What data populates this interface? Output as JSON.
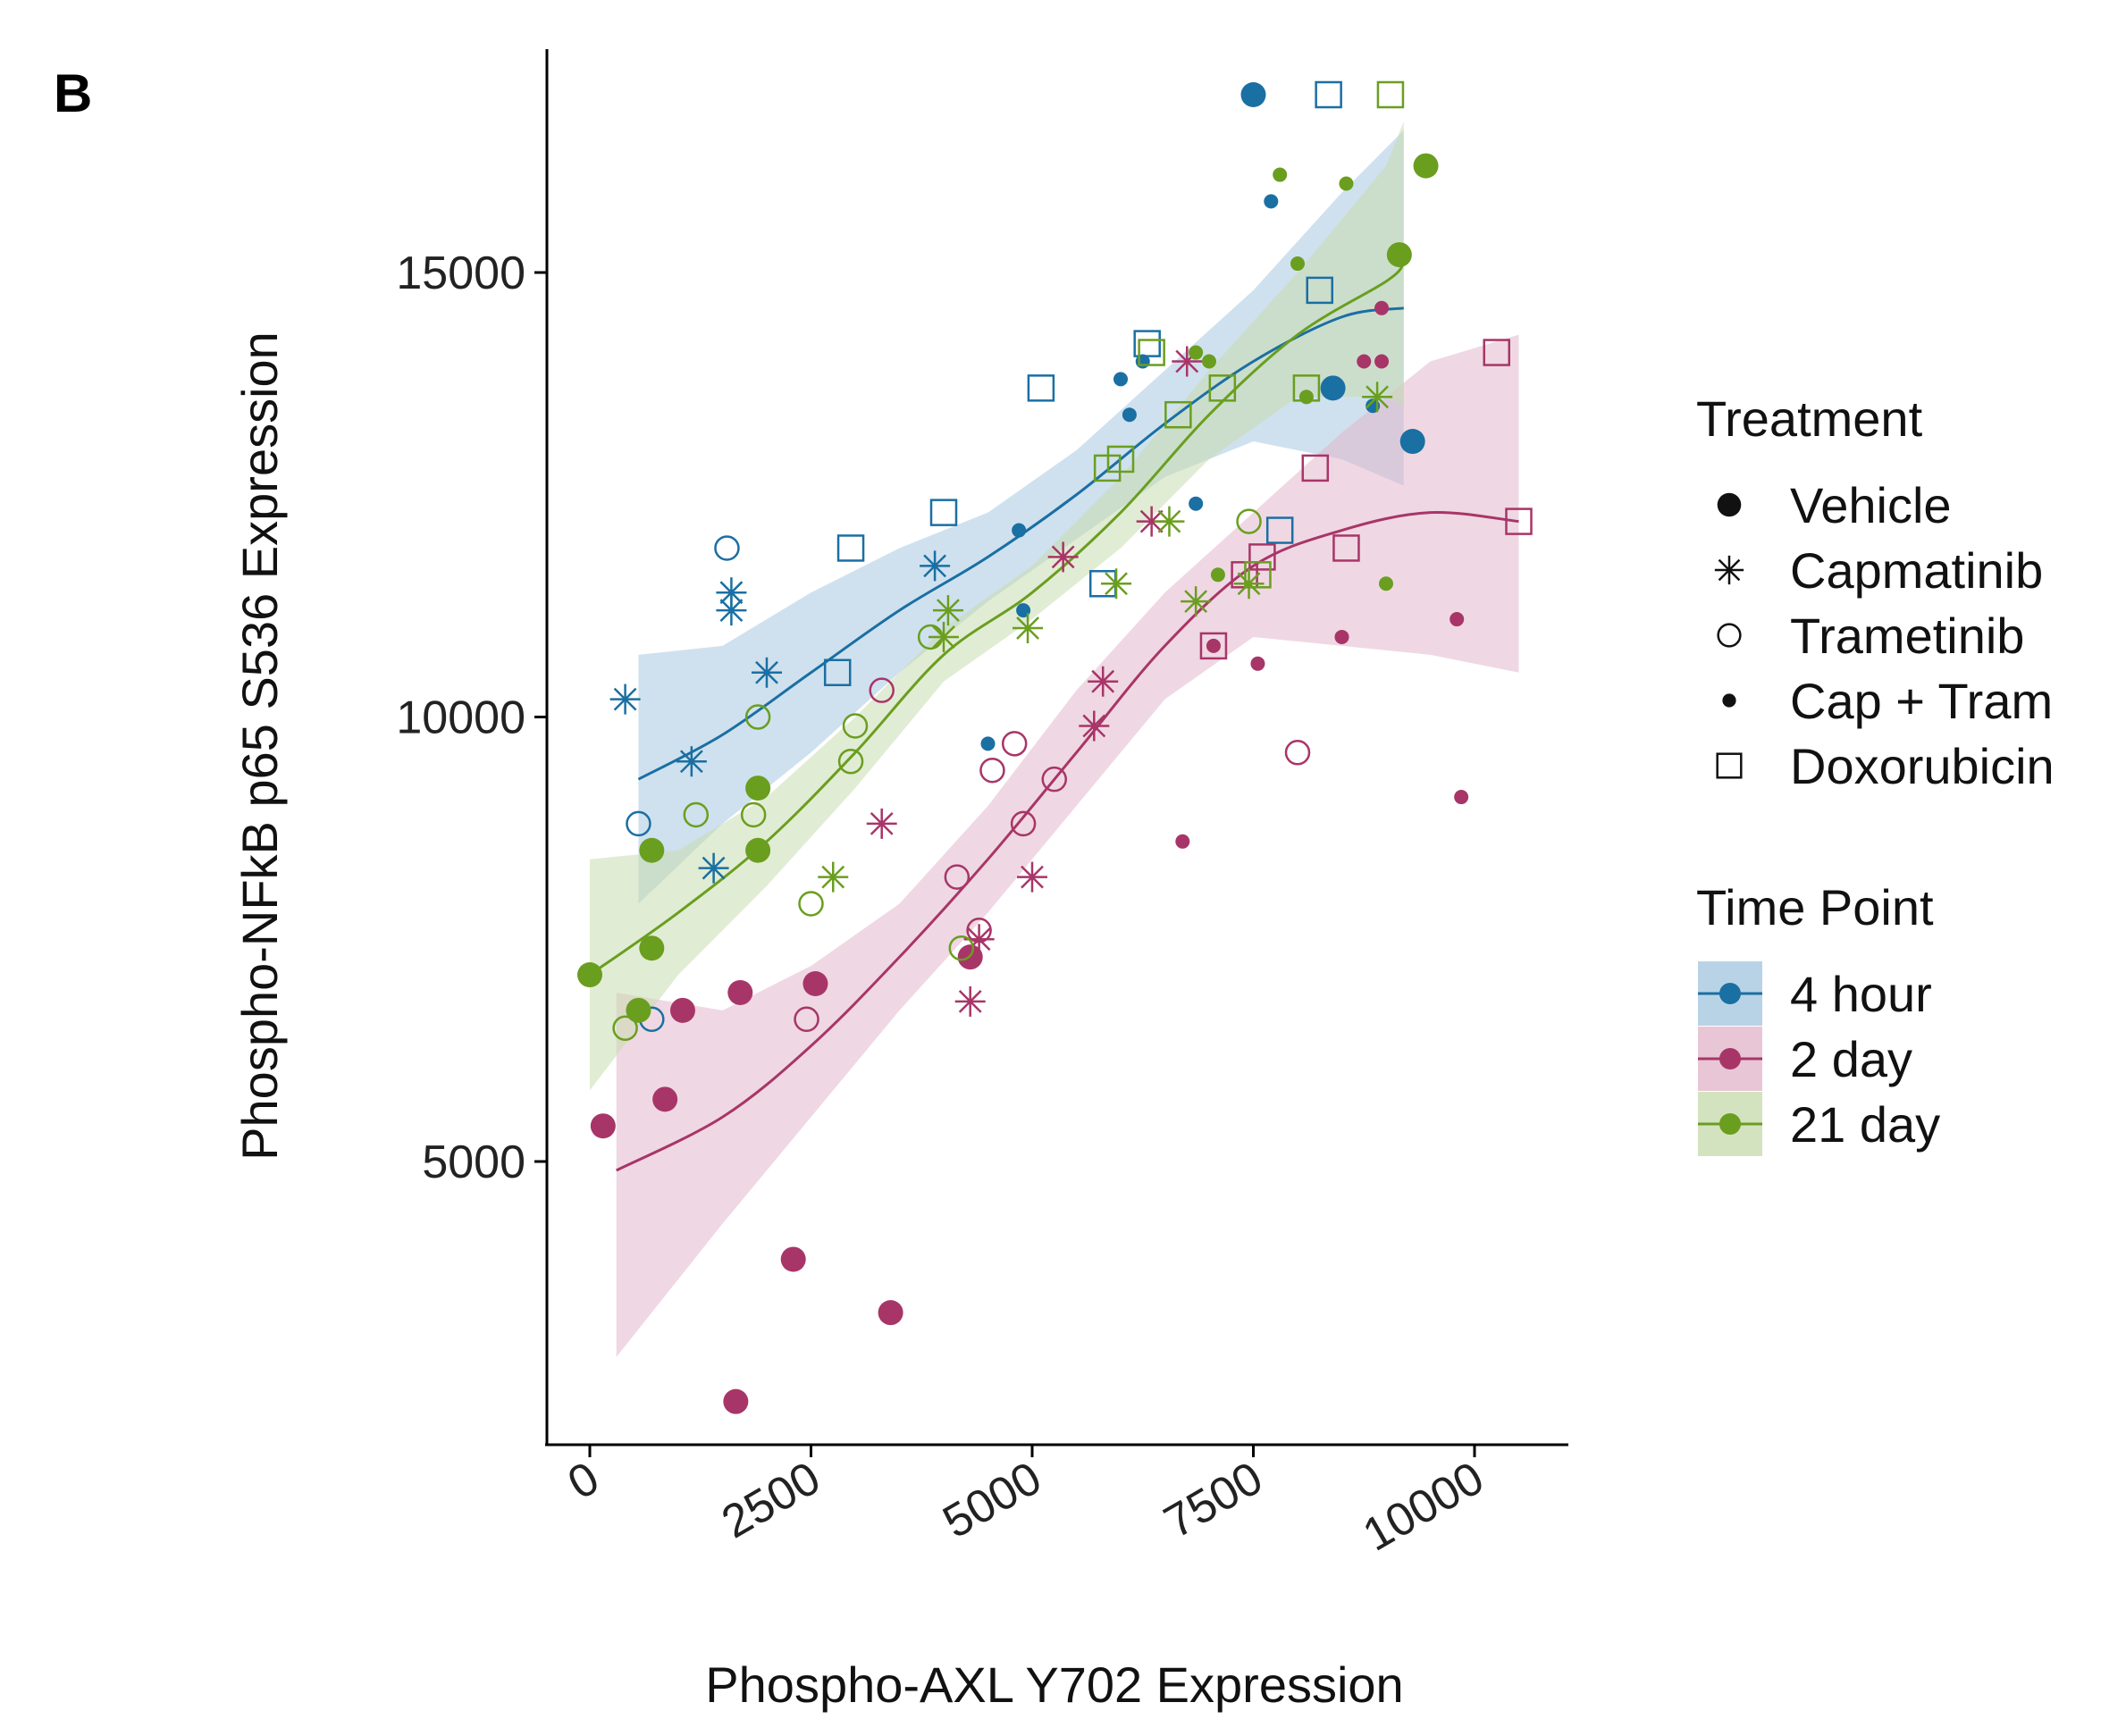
{
  "panel_label": "B",
  "chart_data": {
    "type": "scatter",
    "title": "",
    "xlabel": "Phospho-AXL Y702 Expression",
    "ylabel": "Phospho-NFkB p65 S536 Expression",
    "xlim": [
      -1000,
      11000
    ],
    "ylim": [
      2000,
      17500
    ],
    "xticks": [
      0,
      2500,
      5000,
      7500,
      10000
    ],
    "xtick_labels": [
      "0",
      "2500",
      "5000",
      "7500",
      "10000"
    ],
    "yticks": [
      5000,
      10000,
      15000
    ],
    "ytick_labels": [
      "5000",
      "10000",
      "15000"
    ],
    "legend_placement": "right",
    "legend": {
      "treatment_title": "Treatment",
      "treatments": [
        {
          "key": "vehicle",
          "label": "Vehicle",
          "shape": "filled-circle"
        },
        {
          "key": "capmatinib",
          "label": "Capmatinib",
          "shape": "asterisk"
        },
        {
          "key": "trametinib",
          "label": "Trametinib",
          "shape": "open-circle"
        },
        {
          "key": "cap_tram",
          "label": "Cap + Tram",
          "shape": "small-dot"
        },
        {
          "key": "doxorubicin",
          "label": "Doxorubicin",
          "shape": "open-square"
        }
      ],
      "time_title": "Time Point",
      "time_points": [
        {
          "key": "4h",
          "label": "4 hour",
          "color": "#1a6fa3",
          "band_color": "#a8c8e0"
        },
        {
          "key": "2d",
          "label": "2 day",
          "color": "#a83568",
          "band_color": "#e2b8cc"
        },
        {
          "key": "21d",
          "label": "21 day",
          "color": "#6a9e1f",
          "band_color": "#c8dcb0"
        }
      ]
    },
    "series": [
      {
        "name": "4 hour",
        "key": "4h",
        "smooth": {
          "x": [
            550,
            1500,
            2500,
            3500,
            4500,
            5500,
            6500,
            7500,
            8500,
            9200
          ],
          "y": [
            9300,
            9800,
            10500,
            11200,
            11800,
            12500,
            13300,
            14000,
            14500,
            14600
          ],
          "lower": [
            7900,
            8800,
            9600,
            10500,
            11300,
            12000,
            12700,
            13100,
            12900,
            12600
          ],
          "upper": [
            10700,
            10800,
            11400,
            11900,
            12300,
            13000,
            13900,
            14800,
            15900,
            16600
          ]
        },
        "points": [
          {
            "t": "vehicle",
            "x": 7500,
            "y": 17000
          },
          {
            "t": "vehicle",
            "x": 8400,
            "y": 13700
          },
          {
            "t": "vehicle",
            "x": 9300,
            "y": 13100
          },
          {
            "t": "capmatinib",
            "x": 400,
            "y": 10200
          },
          {
            "t": "capmatinib",
            "x": 1150,
            "y": 9500
          },
          {
            "t": "capmatinib",
            "x": 1400,
            "y": 8300
          },
          {
            "t": "capmatinib",
            "x": 1600,
            "y": 11400
          },
          {
            "t": "capmatinib",
            "x": 1600,
            "y": 11200
          },
          {
            "t": "capmatinib",
            "x": 2000,
            "y": 10500
          },
          {
            "t": "capmatinib",
            "x": 3900,
            "y": 11700
          },
          {
            "t": "trametinib",
            "x": 550,
            "y": 8800
          },
          {
            "t": "trametinib",
            "x": 700,
            "y": 6600
          },
          {
            "t": "trametinib",
            "x": 1550,
            "y": 11900
          },
          {
            "t": "cap_tram",
            "x": 4500,
            "y": 9700
          },
          {
            "t": "cap_tram",
            "x": 4900,
            "y": 11200
          },
          {
            "t": "cap_tram",
            "x": 4850,
            "y": 12100
          },
          {
            "t": "cap_tram",
            "x": 6000,
            "y": 13800
          },
          {
            "t": "cap_tram",
            "x": 6100,
            "y": 13400
          },
          {
            "t": "cap_tram",
            "x": 6250,
            "y": 14000
          },
          {
            "t": "cap_tram",
            "x": 6850,
            "y": 12400
          },
          {
            "t": "cap_tram",
            "x": 7700,
            "y": 15800
          },
          {
            "t": "cap_tram",
            "x": 8850,
            "y": 13500
          },
          {
            "t": "doxorubicin",
            "x": 2800,
            "y": 10500
          },
          {
            "t": "doxorubicin",
            "x": 2950,
            "y": 11900
          },
          {
            "t": "doxorubicin",
            "x": 4000,
            "y": 12300
          },
          {
            "t": "doxorubicin",
            "x": 5100,
            "y": 13700
          },
          {
            "t": "doxorubicin",
            "x": 5800,
            "y": 11500
          },
          {
            "t": "doxorubicin",
            "x": 6300,
            "y": 14200
          },
          {
            "t": "doxorubicin",
            "x": 7800,
            "y": 12100
          },
          {
            "t": "doxorubicin",
            "x": 8250,
            "y": 14800
          },
          {
            "t": "doxorubicin",
            "x": 8350,
            "y": 17000
          }
        ]
      },
      {
        "name": "2 day",
        "key": "2d",
        "smooth": {
          "x": [
            300,
            1500,
            2500,
            3500,
            4500,
            5500,
            6500,
            7500,
            8500,
            9500,
            10500
          ],
          "y": [
            4900,
            5500,
            6300,
            7300,
            8400,
            9600,
            10800,
            11700,
            12100,
            12300,
            12200
          ],
          "lower": [
            2800,
            4300,
            5500,
            6700,
            7800,
            9000,
            10200,
            10900,
            10800,
            10700,
            10500
          ],
          "upper": [
            6900,
            6700,
            7200,
            7900,
            9000,
            10300,
            11400,
            12300,
            13200,
            14000,
            14300
          ]
        },
        "points": [
          {
            "t": "vehicle",
            "x": 150,
            "y": 5400
          },
          {
            "t": "vehicle",
            "x": 850,
            "y": 5700
          },
          {
            "t": "vehicle",
            "x": 1050,
            "y": 6700
          },
          {
            "t": "vehicle",
            "x": 1700,
            "y": 6900
          },
          {
            "t": "vehicle",
            "x": 1650,
            "y": 2300
          },
          {
            "t": "vehicle",
            "x": 2300,
            "y": 3900
          },
          {
            "t": "vehicle",
            "x": 2550,
            "y": 7000
          },
          {
            "t": "vehicle",
            "x": 3400,
            "y": 3300
          },
          {
            "t": "vehicle",
            "x": 4300,
            "y": 7300
          },
          {
            "t": "capmatinib",
            "x": 3300,
            "y": 8800
          },
          {
            "t": "capmatinib",
            "x": 4300,
            "y": 6800
          },
          {
            "t": "capmatinib",
            "x": 4400,
            "y": 7500
          },
          {
            "t": "capmatinib",
            "x": 5000,
            "y": 8200
          },
          {
            "t": "capmatinib",
            "x": 5350,
            "y": 11800
          },
          {
            "t": "capmatinib",
            "x": 5700,
            "y": 9900
          },
          {
            "t": "capmatinib",
            "x": 5800,
            "y": 10400
          },
          {
            "t": "capmatinib",
            "x": 6350,
            "y": 12200
          },
          {
            "t": "capmatinib",
            "x": 6750,
            "y": 14000
          },
          {
            "t": "trametinib",
            "x": 2450,
            "y": 6600
          },
          {
            "t": "trametinib",
            "x": 3300,
            "y": 10300
          },
          {
            "t": "trametinib",
            "x": 4150,
            "y": 8200
          },
          {
            "t": "trametinib",
            "x": 4400,
            "y": 7600
          },
          {
            "t": "trametinib",
            "x": 4550,
            "y": 9400
          },
          {
            "t": "trametinib",
            "x": 4800,
            "y": 9700
          },
          {
            "t": "trametinib",
            "x": 4900,
            "y": 8800
          },
          {
            "t": "trametinib",
            "x": 5250,
            "y": 9300
          },
          {
            "t": "trametinib",
            "x": 8000,
            "y": 9600
          },
          {
            "t": "cap_tram",
            "x": 6700,
            "y": 8600
          },
          {
            "t": "cap_tram",
            "x": 7050,
            "y": 10800
          },
          {
            "t": "cap_tram",
            "x": 7550,
            "y": 10600
          },
          {
            "t": "cap_tram",
            "x": 8500,
            "y": 10900
          },
          {
            "t": "cap_tram",
            "x": 8750,
            "y": 14000
          },
          {
            "t": "cap_tram",
            "x": 8950,
            "y": 14600
          },
          {
            "t": "cap_tram",
            "x": 8950,
            "y": 14000
          },
          {
            "t": "cap_tram",
            "x": 9800,
            "y": 11100
          },
          {
            "t": "cap_tram",
            "x": 9850,
            "y": 9100
          },
          {
            "t": "doxorubicin",
            "x": 7050,
            "y": 10800
          },
          {
            "t": "doxorubicin",
            "x": 7400,
            "y": 11600
          },
          {
            "t": "doxorubicin",
            "x": 7600,
            "y": 11800
          },
          {
            "t": "doxorubicin",
            "x": 8200,
            "y": 12800
          },
          {
            "t": "doxorubicin",
            "x": 8550,
            "y": 11900
          },
          {
            "t": "doxorubicin",
            "x": 10250,
            "y": 14100
          },
          {
            "t": "doxorubicin",
            "x": 10500,
            "y": 12200
          }
        ]
      },
      {
        "name": "21 day",
        "key": "21d",
        "smooth": {
          "x": [
            0,
            1000,
            2000,
            3000,
            4000,
            5000,
            6000,
            7000,
            8000,
            9000,
            9200
          ],
          "y": [
            7100,
            7800,
            8600,
            9600,
            10700,
            11400,
            12300,
            13400,
            14300,
            14900,
            15100
          ],
          "lower": [
            5800,
            7100,
            8100,
            9200,
            10400,
            11100,
            11900,
            12900,
            13600,
            13600,
            13500
          ],
          "upper": [
            8400,
            8500,
            9100,
            10000,
            11000,
            11700,
            12700,
            13900,
            15000,
            16200,
            16700
          ]
        },
        "points": [
          {
            "t": "vehicle",
            "x": 0,
            "y": 7100
          },
          {
            "t": "vehicle",
            "x": 550,
            "y": 6700
          },
          {
            "t": "vehicle",
            "x": 700,
            "y": 7400
          },
          {
            "t": "vehicle",
            "x": 700,
            "y": 8500
          },
          {
            "t": "vehicle",
            "x": 1900,
            "y": 8500
          },
          {
            "t": "vehicle",
            "x": 1900,
            "y": 9200
          },
          {
            "t": "vehicle",
            "x": 9150,
            "y": 15200
          },
          {
            "t": "vehicle",
            "x": 9450,
            "y": 16200
          },
          {
            "t": "capmatinib",
            "x": 2750,
            "y": 8200
          },
          {
            "t": "capmatinib",
            "x": 4000,
            "y": 10900
          },
          {
            "t": "capmatinib",
            "x": 4050,
            "y": 11200
          },
          {
            "t": "capmatinib",
            "x": 4950,
            "y": 11000
          },
          {
            "t": "capmatinib",
            "x": 5950,
            "y": 11500
          },
          {
            "t": "capmatinib",
            "x": 6550,
            "y": 12200
          },
          {
            "t": "capmatinib",
            "x": 6850,
            "y": 11300
          },
          {
            "t": "capmatinib",
            "x": 7450,
            "y": 11500
          },
          {
            "t": "capmatinib",
            "x": 8900,
            "y": 13600
          },
          {
            "t": "trametinib",
            "x": 400,
            "y": 6500
          },
          {
            "t": "trametinib",
            "x": 1200,
            "y": 8900
          },
          {
            "t": "trametinib",
            "x": 1850,
            "y": 8900
          },
          {
            "t": "trametinib",
            "x": 1900,
            "y": 10000
          },
          {
            "t": "trametinib",
            "x": 2500,
            "y": 7900
          },
          {
            "t": "trametinib",
            "x": 2950,
            "y": 9500
          },
          {
            "t": "trametinib",
            "x": 3000,
            "y": 9900
          },
          {
            "t": "trametinib",
            "x": 3850,
            "y": 10900
          },
          {
            "t": "trametinib",
            "x": 4200,
            "y": 7400
          },
          {
            "t": "trametinib",
            "x": 7450,
            "y": 12200
          },
          {
            "t": "cap_tram",
            "x": 6850,
            "y": 14100
          },
          {
            "t": "cap_tram",
            "x": 7000,
            "y": 14000
          },
          {
            "t": "cap_tram",
            "x": 7100,
            "y": 11600
          },
          {
            "t": "cap_tram",
            "x": 7800,
            "y": 16100
          },
          {
            "t": "cap_tram",
            "x": 8100,
            "y": 13600
          },
          {
            "t": "cap_tram",
            "x": 8000,
            "y": 15100
          },
          {
            "t": "cap_tram",
            "x": 8550,
            "y": 16000
          },
          {
            "t": "cap_tram",
            "x": 9000,
            "y": 11500
          },
          {
            "t": "doxorubicin",
            "x": 5850,
            "y": 12800
          },
          {
            "t": "doxorubicin",
            "x": 6000,
            "y": 12900
          },
          {
            "t": "doxorubicin",
            "x": 6350,
            "y": 14100
          },
          {
            "t": "doxorubicin",
            "x": 6650,
            "y": 13400
          },
          {
            "t": "doxorubicin",
            "x": 7150,
            "y": 13700
          },
          {
            "t": "doxorubicin",
            "x": 7550,
            "y": 11600
          },
          {
            "t": "doxorubicin",
            "x": 8100,
            "y": 13700
          },
          {
            "t": "doxorubicin",
            "x": 9050,
            "y": 17000
          }
        ]
      }
    ]
  }
}
